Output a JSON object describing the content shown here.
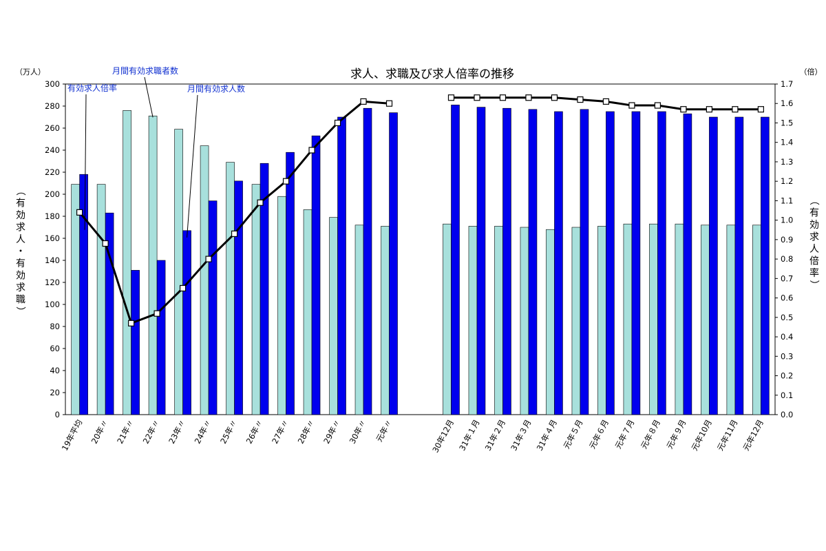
{
  "chart_data": {
    "type": "bar",
    "title": "求人、求職及び求人倍率の推移",
    "left_unit": "（万人）",
    "right_unit": "（倍）",
    "ylabel_left": "（有効求人・有効求職）",
    "ylabel_right": "（有効求人倍率）",
    "ylim_left": [
      0,
      300
    ],
    "ylim_right": [
      0.0,
      1.7
    ],
    "left_ticks": [
      "0",
      "20",
      "40",
      "60",
      "80",
      "100",
      "120",
      "140",
      "160",
      "180",
      "200",
      "220",
      "240",
      "260",
      "280",
      "300"
    ],
    "right_ticks": [
      "0.0",
      "0.1",
      "0.2",
      "0.3",
      "0.4",
      "0.5",
      "0.6",
      "0.7",
      "0.8",
      "0.9",
      "1.0",
      "1.1",
      "1.2",
      "1.3",
      "1.4",
      "1.5",
      "1.6",
      "1.7"
    ],
    "grid": false,
    "annotations": [
      {
        "text": "有効求人倍率",
        "series": "ratio"
      },
      {
        "text": "月間有効求職者数",
        "series": "seekers"
      },
      {
        "text": "月間有効求人数",
        "series": "openings"
      }
    ],
    "groups": [
      {
        "categories": [
          "19年平均",
          "20年〃",
          "21年〃",
          "22年〃",
          "23年〃",
          "24年〃",
          "25年〃",
          "26年〃",
          "27年〃",
          "28年〃",
          "29年〃",
          "30年〃",
          "元年〃"
        ],
        "series": [
          {
            "name": "月間有効求職者数",
            "axis": "left",
            "color": "#a8e0dc",
            "values": [
              209,
              209,
              276,
              271,
              259,
              244,
              229,
              209,
              198,
              186,
              179,
              172,
              171
            ]
          },
          {
            "name": "月間有効求人数",
            "axis": "left",
            "color": "#0000ee",
            "values": [
              218,
              183,
              131,
              140,
              167,
              194,
              212,
              228,
              238,
              253,
              270,
              278,
              274
            ]
          },
          {
            "name": "有効求人倍率",
            "axis": "right",
            "type": "line",
            "values": [
              1.04,
              0.88,
              0.47,
              0.52,
              0.65,
              0.8,
              0.93,
              1.09,
              1.2,
              1.36,
              1.5,
              1.61,
              1.6
            ]
          }
        ]
      },
      {
        "categories": [
          "30年12月",
          "31年１月",
          "31年２月",
          "31年３月",
          "31年４月",
          "元年５月",
          "元年６月",
          "元年７月",
          "元年８月",
          "元年９月",
          "元年10月",
          "元年11月",
          "元年12月"
        ],
        "series": [
          {
            "name": "月間有効求職者数",
            "axis": "left",
            "color": "#a8e0dc",
            "values": [
              173,
              171,
              171,
              170,
              168,
              170,
              171,
              173,
              173,
              173,
              172,
              172,
              172
            ]
          },
          {
            "name": "月間有効求人数",
            "axis": "left",
            "color": "#0000ee",
            "values": [
              281,
              279,
              278,
              277,
              275,
              277,
              275,
              275,
              275,
              273,
              270,
              270,
              270
            ]
          },
          {
            "name": "有効求人倍率",
            "axis": "right",
            "type": "line",
            "values": [
              1.63,
              1.63,
              1.63,
              1.63,
              1.63,
              1.62,
              1.61,
              1.59,
              1.59,
              1.57,
              1.57,
              1.57,
              1.57
            ]
          }
        ]
      }
    ]
  }
}
